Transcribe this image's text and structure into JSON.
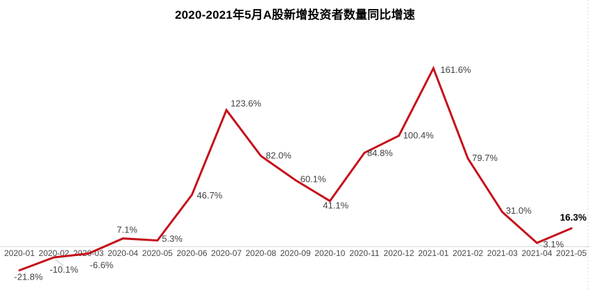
{
  "chart_data": {
    "type": "line",
    "title": "2020-2021年5月A股新增投资者数量同比增速",
    "categories": [
      "2020-01",
      "2020-02",
      "2020-03",
      "2020-04",
      "2020-05",
      "2020-06",
      "2020-07",
      "2020-08",
      "2020-09",
      "2020-10",
      "2020-11",
      "2020-12",
      "2021-01",
      "2021-02",
      "2021-03",
      "2021-04",
      "2021-05"
    ],
    "values": [
      -21.8,
      -10.1,
      -6.6,
      7.1,
      5.3,
      46.7,
      123.6,
      82.0,
      60.1,
      41.1,
      84.8,
      100.4,
      161.6,
      79.7,
      31.0,
      3.1,
      16.3
    ],
    "value_labels": [
      "-21.8%",
      "-10.1%",
      "-6.6%",
      "7.1%",
      "5.3%",
      "46.7%",
      "123.6%",
      "82.0%",
      "60.1%",
      "41.1%",
      "84.8%",
      "100.4%",
      "161.6%",
      "79.7%",
      "31.0%",
      "3.1%",
      "16.3%"
    ],
    "emphasized_label": "16.3%",
    "xlabel": "",
    "ylabel": "",
    "ylim": [
      -30,
      170
    ],
    "grid": false,
    "legend": "none",
    "line_color": "#c5101b",
    "label_color": "#3f3f3f",
    "emphasis_color": "#000000",
    "axis_line_color": "#d9d9d9",
    "axis_label_color": "#474747",
    "leader_line_color": "#bfbfbf"
  }
}
